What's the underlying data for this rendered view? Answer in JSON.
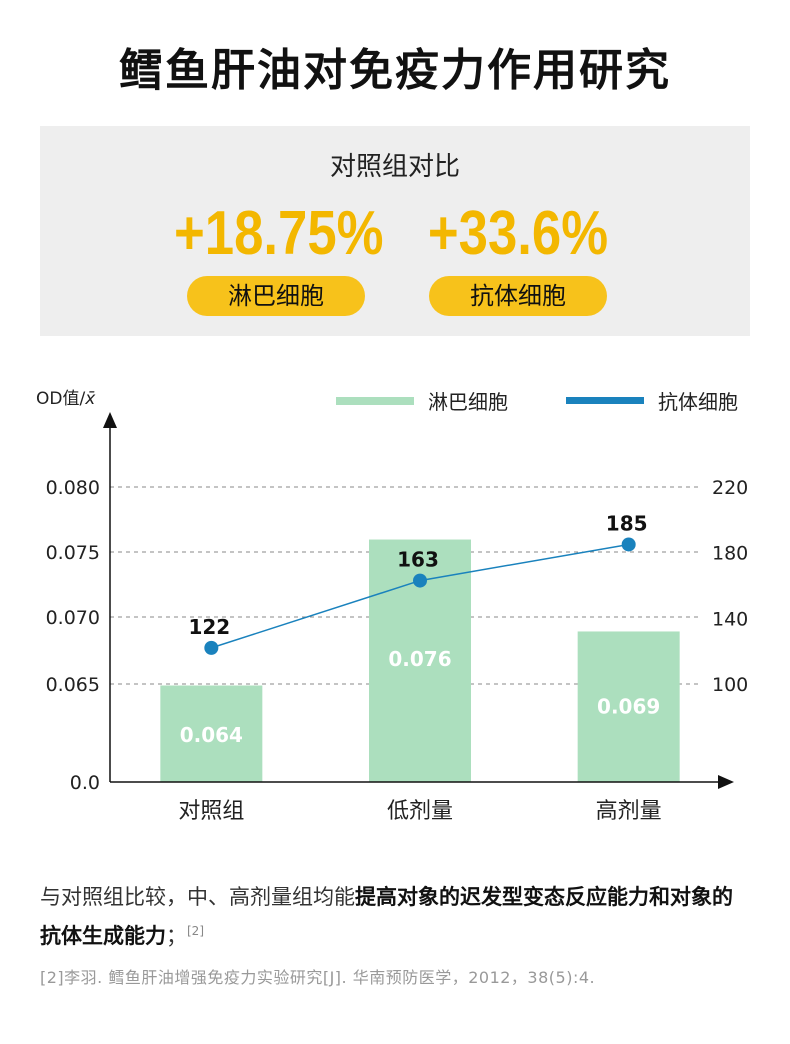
{
  "title": "鳕鱼肝油对免疫力作用研究",
  "comparison": {
    "title": "对照组对比",
    "stats": [
      {
        "value": "+18.75%",
        "label": "淋巴细胞"
      },
      {
        "value": "+33.6%",
        "label": "抗体细胞"
      }
    ]
  },
  "colors": {
    "bar": "#acdfbe",
    "line": "#1a82bd",
    "accent": "#f3b700",
    "pill": "#f7c21b",
    "panel": "#eeeeee"
  },
  "chart_data": {
    "type": "bar",
    "categories": [
      "对照组",
      "低剂量",
      "高剂量"
    ],
    "left_axis": {
      "label": "OD值/",
      "label_symbol": "x̄",
      "ticks": [
        "0.0",
        "0.065",
        "0.070",
        "0.075",
        "0.080"
      ]
    },
    "right_axis": {
      "ticks": [
        "100",
        "140",
        "180",
        "220"
      ]
    },
    "series": [
      {
        "name": "淋巴细胞",
        "kind": "bar",
        "values": [
          0.064,
          0.076,
          0.069
        ],
        "labels": [
          "0.064",
          "0.076",
          "0.069"
        ]
      },
      {
        "name": "抗体细胞",
        "kind": "line",
        "axis": "right",
        "values": [
          122,
          163,
          185
        ],
        "labels": [
          "122",
          "163",
          "185"
        ]
      }
    ],
    "grid": "dashed",
    "legend": "top-right"
  },
  "note": {
    "prefix": "与对照组比较，中、高剂量组均能",
    "bold": "提高对象的迟发型变态反应能力和对象的抗体生成能力",
    "suffix": "；",
    "cite": "[2]"
  },
  "reference": "[2]李羽. 鳕鱼肝油增强免疫力实验研究[J]. 华南预防医学，2012，38(5):4."
}
